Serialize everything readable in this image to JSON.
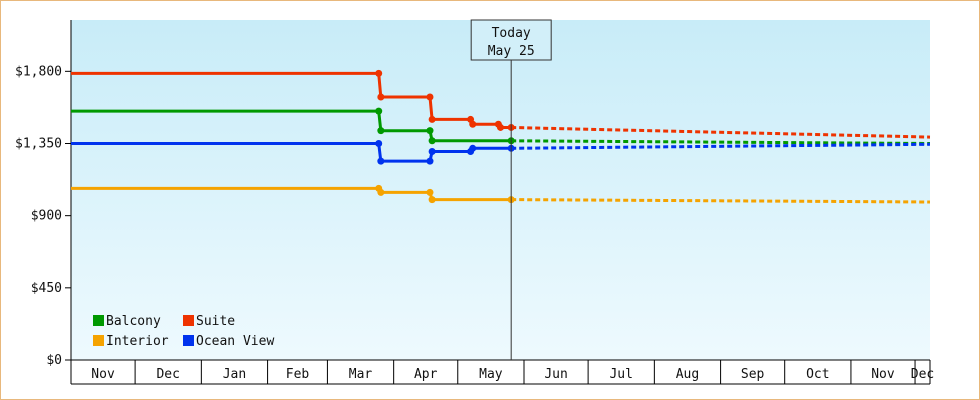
{
  "chart_data": {
    "type": "line",
    "title": "",
    "xlabel": "",
    "ylabel": "",
    "ylim": [
      0,
      2120
    ],
    "yticks": [
      {
        "value": 0,
        "label": "$0"
      },
      {
        "value": 450,
        "label": "$450"
      },
      {
        "value": 900,
        "label": "$900"
      },
      {
        "value": 1350,
        "label": "$1,350"
      },
      {
        "value": 1800,
        "label": "$1,800"
      }
    ],
    "xlim": [
      "2025-10-31",
      "2026-12-07"
    ],
    "months": [
      {
        "label": "Nov",
        "start": "2025-10-31",
        "end": "2025-11-30"
      },
      {
        "label": "Dec",
        "start": "2025-11-30",
        "end": "2025-12-31"
      },
      {
        "label": "Jan",
        "start": "2025-12-31",
        "end": "2026-01-31"
      },
      {
        "label": "Feb",
        "start": "2026-01-31",
        "end": "2026-02-28"
      },
      {
        "label": "Mar",
        "start": "2026-02-28",
        "end": "2026-03-31"
      },
      {
        "label": "Apr",
        "start": "2026-03-31",
        "end": "2026-04-30"
      },
      {
        "label": "May",
        "start": "2026-04-30",
        "end": "2026-05-31"
      },
      {
        "label": "Jun",
        "start": "2026-05-31",
        "end": "2026-06-30"
      },
      {
        "label": "Jul",
        "start": "2026-06-30",
        "end": "2026-07-31"
      },
      {
        "label": "Aug",
        "start": "2026-07-31",
        "end": "2026-08-31"
      },
      {
        "label": "Sep",
        "start": "2026-08-31",
        "end": "2026-09-30"
      },
      {
        "label": "Oct",
        "start": "2026-09-30",
        "end": "2026-10-31"
      },
      {
        "label": "Nov",
        "start": "2026-10-31",
        "end": "2026-11-30"
      },
      {
        "label": "Dec",
        "start": "2026-11-30",
        "end": "2026-12-07"
      }
    ],
    "today": {
      "date": "2026-05-25",
      "line1": "Today",
      "line2": "May 25"
    },
    "legend_position": "bottom-left",
    "grid": false,
    "series": [
      {
        "name": "Suite",
        "color": "#ee3300",
        "points": [
          {
            "x": "2025-10-31",
            "y": 1787
          },
          {
            "x": "2026-03-24",
            "y": 1787
          },
          {
            "x": "2026-03-25",
            "y": 1640
          },
          {
            "x": "2026-04-17",
            "y": 1640
          },
          {
            "x": "2026-04-18",
            "y": 1500
          },
          {
            "x": "2026-05-06",
            "y": 1500
          },
          {
            "x": "2026-05-07",
            "y": 1470
          },
          {
            "x": "2026-05-19",
            "y": 1470
          },
          {
            "x": "2026-05-20",
            "y": 1450
          },
          {
            "x": "2026-05-25",
            "y": 1450
          }
        ],
        "forecast": [
          {
            "x": "2026-05-25",
            "y": 1450
          },
          {
            "x": "2026-12-07",
            "y": 1390
          }
        ]
      },
      {
        "name": "Balcony",
        "color": "#009900",
        "points": [
          {
            "x": "2025-10-31",
            "y": 1552
          },
          {
            "x": "2026-03-24",
            "y": 1552
          },
          {
            "x": "2026-03-25",
            "y": 1430
          },
          {
            "x": "2026-04-17",
            "y": 1430
          },
          {
            "x": "2026-04-18",
            "y": 1367
          },
          {
            "x": "2026-05-25",
            "y": 1367
          }
        ],
        "forecast": [
          {
            "x": "2026-05-25",
            "y": 1367
          },
          {
            "x": "2026-12-07",
            "y": 1350
          }
        ]
      },
      {
        "name": "Ocean View",
        "color": "#0033ee",
        "points": [
          {
            "x": "2025-10-31",
            "y": 1350
          },
          {
            "x": "2026-03-24",
            "y": 1350
          },
          {
            "x": "2026-03-25",
            "y": 1240
          },
          {
            "x": "2026-04-17",
            "y": 1240
          },
          {
            "x": "2026-04-18",
            "y": 1300
          },
          {
            "x": "2026-05-06",
            "y": 1300
          },
          {
            "x": "2026-05-07",
            "y": 1320
          },
          {
            "x": "2026-05-25",
            "y": 1320
          }
        ],
        "forecast": [
          {
            "x": "2026-05-25",
            "y": 1320
          },
          {
            "x": "2026-12-07",
            "y": 1345
          }
        ]
      },
      {
        "name": "Interior",
        "color": "#f5a300",
        "points": [
          {
            "x": "2025-10-31",
            "y": 1070
          },
          {
            "x": "2026-03-24",
            "y": 1070
          },
          {
            "x": "2026-03-25",
            "y": 1045
          },
          {
            "x": "2026-04-17",
            "y": 1045
          },
          {
            "x": "2026-04-18",
            "y": 1000
          },
          {
            "x": "2026-05-25",
            "y": 1000
          }
        ],
        "forecast": [
          {
            "x": "2026-05-25",
            "y": 1000
          },
          {
            "x": "2026-12-07",
            "y": 985
          }
        ]
      }
    ],
    "legend_order": [
      "Balcony",
      "Suite",
      "Interior",
      "Ocean View"
    ],
    "colors": {
      "plot_top": "#c8ecf8",
      "plot_bottom": "#eefafe",
      "border": "#e8b87c",
      "axis": "#000000"
    }
  }
}
